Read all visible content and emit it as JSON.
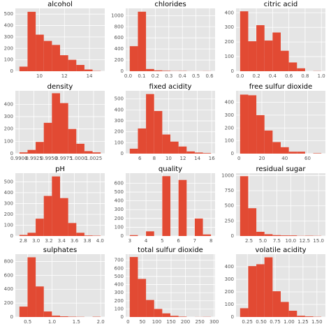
{
  "chart_data": [
    {
      "type": "histogram",
      "title": "alcohol",
      "color": "#e24a33",
      "grid": true,
      "bins": [
        8.4,
        9.05,
        9.7,
        10.35,
        11.0,
        11.65,
        12.3,
        12.95,
        13.6,
        14.25,
        14.9
      ],
      "values": [
        40,
        520,
        320,
        265,
        230,
        140,
        100,
        55,
        15,
        2
      ],
      "xlim": [
        8.075,
        15.225
      ],
      "ylim": [
        0,
        550
      ],
      "xticks": [
        10,
        12,
        14
      ],
      "yticks": [
        0,
        100,
        200,
        300,
        400,
        500
      ]
    },
    {
      "type": "histogram",
      "title": "chlorides",
      "color": "#e24a33",
      "grid": true,
      "bins": [
        0.012,
        0.0719,
        0.1318,
        0.1917,
        0.2516,
        0.3115,
        0.3714,
        0.4313,
        0.4912,
        0.5511,
        0.611
      ],
      "values": [
        450,
        1070,
        40,
        15,
        8,
        3,
        4,
        1,
        1,
        2
      ],
      "xlim": [
        -0.018,
        0.641
      ],
      "ylim": [
        0,
        1130
      ],
      "xticks": [
        {
          "value": 0,
          "label": "0.0"
        },
        0.1,
        0.2,
        0.3,
        0.4,
        0.5,
        0.6
      ],
      "yticks": [
        0,
        200,
        400,
        600,
        800,
        1000
      ]
    },
    {
      "type": "histogram",
      "title": "citric acid",
      "color": "#e24a33",
      "grid": true,
      "bins": [
        0,
        0.1,
        0.2,
        0.3,
        0.4,
        0.5,
        0.6,
        0.7,
        0.8,
        0.9,
        1.0
      ],
      "values": [
        410,
        205,
        315,
        210,
        265,
        140,
        60,
        20,
        0,
        1
      ],
      "xlim": [
        -0.05,
        1.05
      ],
      "ylim": [
        0,
        430
      ],
      "xticks": [
        {
          "value": 0,
          "label": "0.0"
        },
        0.2,
        0.4,
        0.6,
        0.8,
        {
          "value": 1,
          "label": "1.0"
        }
      ],
      "yticks": [
        0,
        100,
        200,
        300,
        400
      ]
    },
    {
      "type": "histogram",
      "title": "density",
      "color": "#e24a33",
      "grid": true,
      "bins": [
        0.99007,
        0.991432,
        0.992794,
        0.994156,
        0.995518,
        0.99688,
        0.998242,
        0.999604,
        1.000966,
        1.002328,
        1.00369
      ],
      "values": [
        10,
        30,
        95,
        250,
        490,
        410,
        200,
        80,
        20,
        10
      ],
      "xlim": [
        0.989389,
        1.004371
      ],
      "ylim": [
        0,
        510
      ],
      "xticks": [
        {
          "value": 0.99,
          "label": "0.9900"
        },
        {
          "value": 0.9925,
          "label": "0.9925"
        },
        {
          "value": 0.995,
          "label": "0.9950"
        },
        {
          "value": 0.9975,
          "label": "0.9975"
        },
        {
          "value": 1,
          "label": "1.0000"
        },
        {
          "value": 1.0025,
          "label": "1.0025"
        }
      ],
      "yticks": [
        0,
        100,
        200,
        300,
        400
      ]
    },
    {
      "type": "histogram",
      "title": "fixed acidity",
      "color": "#e24a33",
      "grid": true,
      "bins": [
        4.6,
        5.73,
        6.86,
        7.99,
        9.12,
        10.25,
        11.38,
        12.51,
        13.64,
        14.77,
        15.9
      ],
      "values": [
        45,
        230,
        545,
        390,
        175,
        110,
        65,
        20,
        10,
        5
      ],
      "xlim": [
        4.035,
        16.465
      ],
      "ylim": [
        0,
        575
      ],
      "xticks": [
        6,
        8,
        10,
        12,
        14,
        16
      ],
      "yticks": [
        0,
        100,
        200,
        300,
        400,
        500
      ]
    },
    {
      "type": "histogram",
      "title": "free sulfur dioxide",
      "color": "#e24a33",
      "grid": true,
      "bins": [
        1,
        8.1,
        15.2,
        22.3,
        29.4,
        36.5,
        43.6,
        50.7,
        57.8,
        64.9,
        72
      ],
      "values": [
        460,
        455,
        300,
        180,
        90,
        50,
        15,
        15,
        0,
        3
      ],
      "xlim": [
        -2.55,
        75.55
      ],
      "ylim": [
        0,
        490
      ],
      "xticks": [
        0,
        20,
        40,
        60
      ],
      "yticks": [
        0,
        100,
        200,
        300,
        400
      ]
    },
    {
      "type": "histogram",
      "title": "pH",
      "color": "#e24a33",
      "grid": true,
      "bins": [
        2.74,
        2.867,
        2.994,
        3.121,
        3.248,
        3.375,
        3.502,
        3.629,
        3.756,
        3.883,
        4.01
      ],
      "values": [
        10,
        30,
        160,
        370,
        550,
        350,
        120,
        30,
        5,
        3
      ],
      "xlim": [
        2.6765,
        4.0735
      ],
      "ylim": [
        0,
        580
      ],
      "xticks": [
        2.8,
        {
          "value": 3,
          "label": "3.0"
        },
        3.2,
        3.4,
        3.6,
        3.8,
        {
          "value": 4,
          "label": "4.0"
        }
      ],
      "yticks": [
        0,
        100,
        200,
        300,
        400,
        500
      ]
    },
    {
      "type": "histogram",
      "title": "quality",
      "color": "#e24a33",
      "grid": true,
      "bins": [
        3,
        3.5,
        4,
        4.5,
        5,
        5.5,
        6,
        6.5,
        7,
        7.5,
        8
      ],
      "values": [
        10,
        0,
        53,
        0,
        681,
        0,
        638,
        0,
        199,
        18
      ],
      "xlim": [
        2.75,
        8.25
      ],
      "ylim": [
        0,
        715
      ],
      "xticks": [
        3,
        4,
        5,
        6,
        7,
        8
      ],
      "yticks": [
        0,
        100,
        200,
        300,
        400,
        500,
        600
      ]
    },
    {
      "type": "histogram",
      "title": "residual sugar",
      "color": "#e24a33",
      "grid": true,
      "bins": [
        0.9,
        2.36,
        3.82,
        5.28,
        6.74,
        8.2,
        9.66,
        11.12,
        12.58,
        14.04,
        15.5
      ],
      "values": [
        990,
        460,
        70,
        30,
        15,
        10,
        10,
        3,
        5,
        3
      ],
      "xlim": [
        0.17,
        16.23
      ],
      "ylim": [
        0,
        1040
      ],
      "xticks": [
        2.5,
        {
          "value": 5,
          "label": "5.0"
        },
        7.5,
        {
          "value": 10,
          "label": "10.0"
        },
        12.5,
        {
          "value": 15,
          "label": "15.0"
        }
      ],
      "yticks": [
        0,
        250,
        500,
        750,
        1000
      ]
    },
    {
      "type": "histogram",
      "title": "sulphates",
      "color": "#e24a33",
      "grid": true,
      "bins": [
        0.33,
        0.497,
        0.664,
        0.831,
        0.998,
        1.165,
        1.332,
        1.499,
        1.666,
        1.833,
        2.0
      ],
      "values": [
        150,
        860,
        440,
        80,
        20,
        10,
        5,
        3,
        0,
        4
      ],
      "xlim": [
        0.2465,
        2.0835
      ],
      "ylim": [
        0,
        905
      ],
      "xticks": [
        0.5,
        {
          "value": 1,
          "label": "1.0"
        },
        1.5,
        {
          "value": 2,
          "label": "2.0"
        }
      ],
      "yticks": [
        0,
        200,
        400,
        600,
        800
      ]
    },
    {
      "type": "histogram",
      "title": "total sulfur dioxide",
      "color": "#e24a33",
      "grid": true,
      "bins": [
        6,
        34.3,
        62.6,
        90.9,
        119.2,
        147.5,
        175.8,
        204.1,
        232.4,
        260.7,
        289
      ],
      "values": [
        740,
        470,
        210,
        100,
        45,
        15,
        5,
        0,
        1,
        2
      ],
      "xlim": [
        -8.15,
        303.15
      ],
      "ylim": [
        0,
        775
      ],
      "xticks": [
        0,
        50,
        100,
        150,
        200,
        250,
        300
      ],
      "yticks": [
        0,
        100,
        200,
        300,
        400,
        500,
        600,
        700
      ]
    },
    {
      "type": "histogram",
      "title": "volatile acidity",
      "color": "#e24a33",
      "grid": true,
      "bins": [
        0.12,
        0.266,
        0.412,
        0.558,
        0.704,
        0.85,
        0.996,
        1.142,
        1.288,
        1.434,
        1.58
      ],
      "values": [
        70,
        405,
        420,
        475,
        205,
        120,
        50,
        10,
        5,
        2
      ],
      "xlim": [
        0.047,
        1.653
      ],
      "ylim": [
        0,
        500
      ],
      "xticks": [
        0.25,
        {
          "value": 0.5,
          "label": "0.50"
        },
        0.75,
        {
          "value": 1,
          "label": "1.00"
        },
        1.25,
        {
          "value": 1.5,
          "label": "1.50"
        }
      ],
      "yticks": [
        0,
        100,
        200,
        300,
        400
      ]
    }
  ]
}
